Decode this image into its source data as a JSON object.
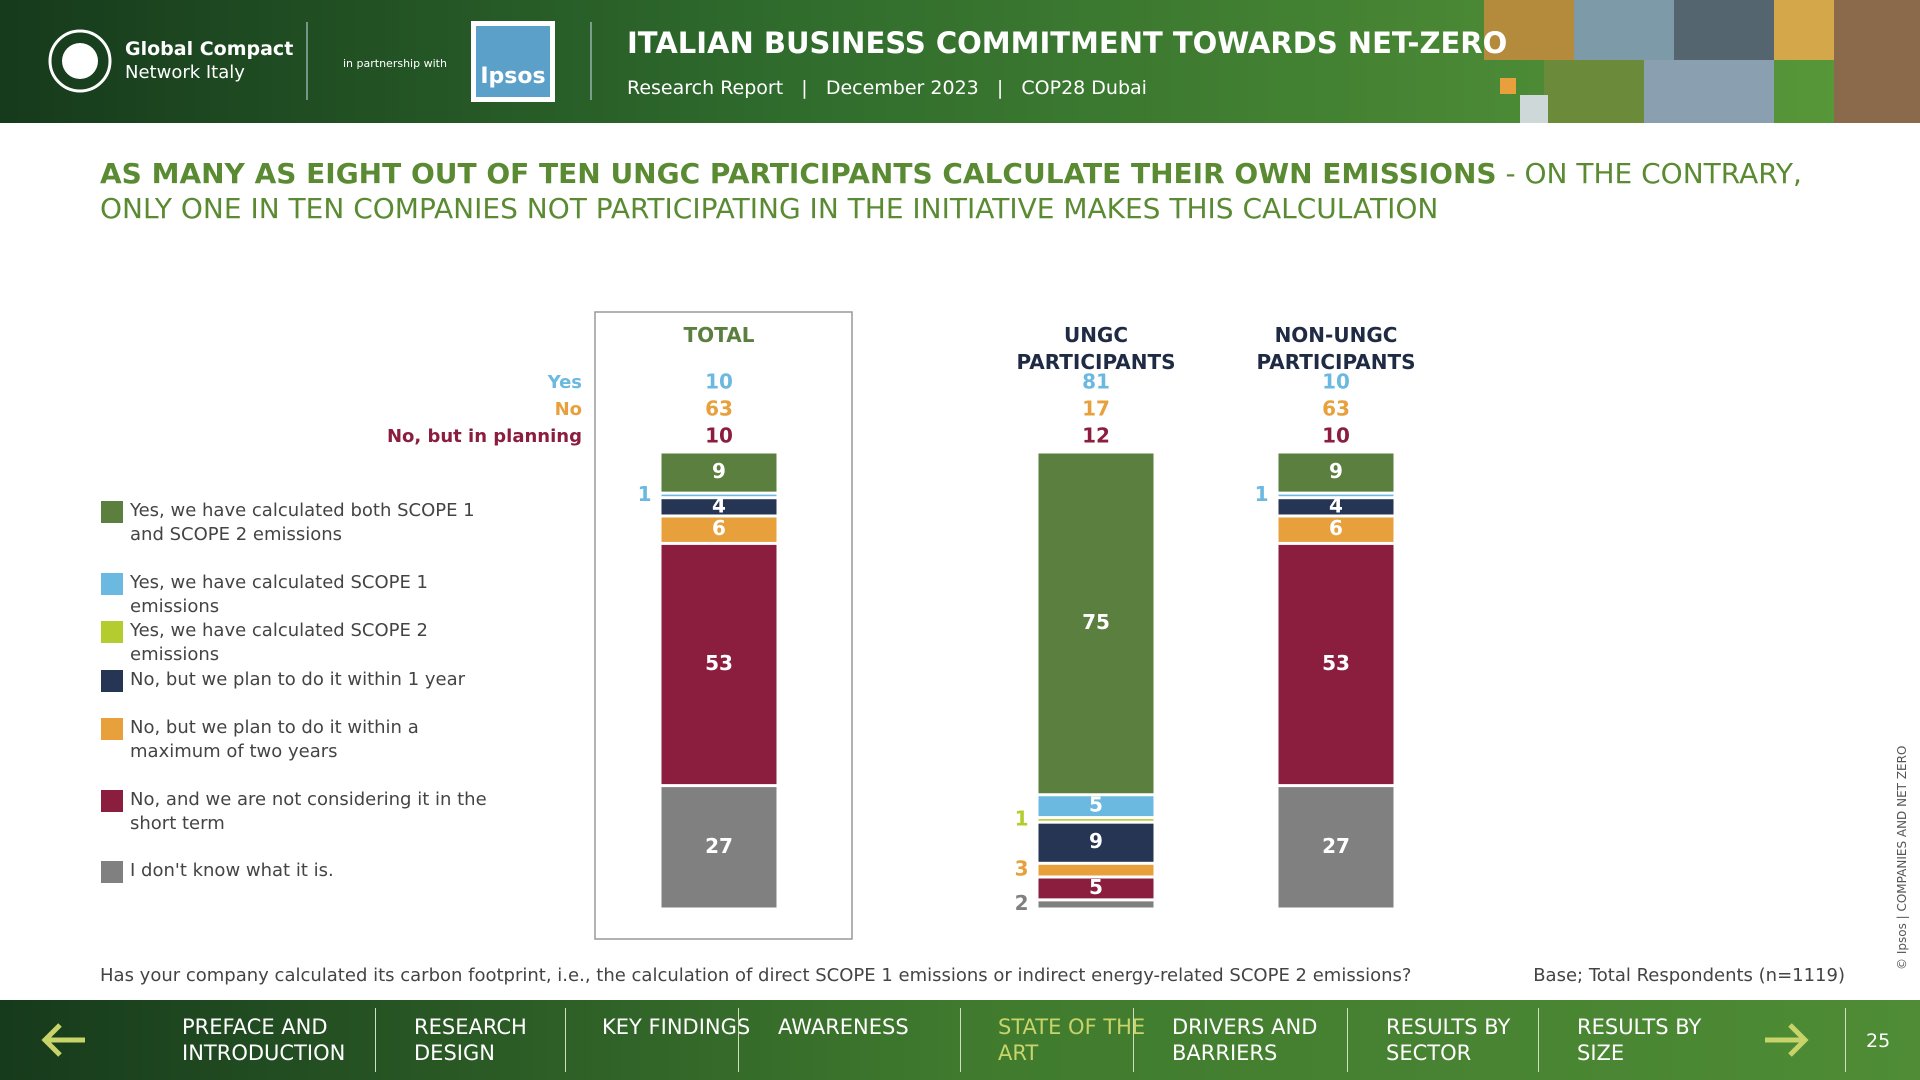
{
  "header": {
    "org_line1": "Global Compact",
    "org_line2": "Network Italy",
    "partnership": "in partnership with",
    "partner": "Ipsos",
    "title": "ITALIAN BUSINESS COMMITMENT TOWARDS NET-ZERO",
    "subtitle": [
      "Research Report",
      "December 2023",
      "COP28 Dubai"
    ]
  },
  "headline": {
    "bold": "AS MANY AS EIGHT OUT OF TEN UNGC PARTICIPANTS CALCULATE THEIR OWN EMISSIONS",
    "rest": " - ON THE CONTRARY, ONLY ONE IN TEN COMPANIES NOT PARTICIPATING IN THE INITIATIVE MAKES THIS CALCULATION"
  },
  "chart_data": {
    "type": "stacked_bar",
    "categories": [
      "TOTAL",
      "UNGC PARTICIPANTS",
      "NON-UNGC PARTICIPANTS"
    ],
    "summary_rows": [
      {
        "name": "Yes",
        "color": "#6bb8e0",
        "values": [
          10,
          81,
          10
        ]
      },
      {
        "name": "No",
        "color": "#e8a03c",
        "values": [
          63,
          17,
          63
        ]
      },
      {
        "name": "No, but in planning",
        "color": "#8b1e3f",
        "values": [
          10,
          12,
          10
        ]
      }
    ],
    "series": [
      {
        "name": "Yes, we have calculated both SCOPE 1 and SCOPE 2 emissions",
        "color": "#5a7f3e",
        "values": [
          9,
          75,
          9
        ]
      },
      {
        "name": "Yes, we have calculated SCOPE 1 emissions",
        "color": "#6bb8e0",
        "values": [
          1,
          5,
          1
        ]
      },
      {
        "name": "Yes, we have calculated SCOPE 2 emissions",
        "color": "#b5cc2e",
        "values": [
          0,
          1,
          0
        ]
      },
      {
        "name": "No, but we plan to do it within 1 year",
        "color": "#253553",
        "values": [
          4,
          9,
          4
        ]
      },
      {
        "name": "No, but we plan to do it within a maximum of two years",
        "color": "#e8a03c",
        "values": [
          6,
          3,
          6
        ]
      },
      {
        "name": "No, and we are not considering it in the short term",
        "color": "#8b1e3f",
        "values": [
          53,
          5,
          53
        ]
      },
      {
        "name": "I don't know what it is.",
        "color": "#808080",
        "values": [
          27,
          2,
          27
        ]
      }
    ]
  },
  "question": "Has your company calculated its carbon footprint, i.e., the calculation of direct SCOPE 1 emissions or indirect energy-related SCOPE 2 emissions?",
  "base": "Base; Total Respondents (n=1119)",
  "copyright": "© Ipsos | COMPANIES AND NET ZERO",
  "nav": {
    "items": [
      "PREFACE AND INTRODUCTION",
      "RESEARCH DESIGN",
      "KEY FINDINGS",
      "AWARENESS",
      "STATE OF THE ART",
      "DRIVERS AND BARRIERS",
      "RESULTS BY SECTOR",
      "RESULTS BY SIZE"
    ],
    "active": 4,
    "page": "25"
  }
}
